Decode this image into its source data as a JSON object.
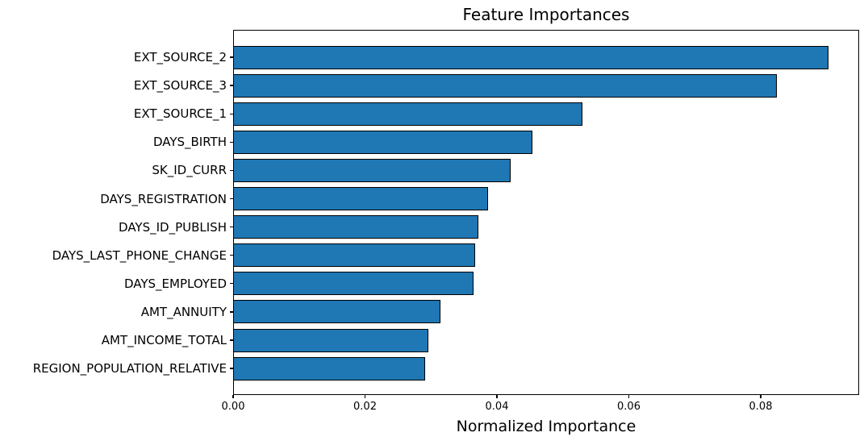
{
  "chart_data": {
    "type": "bar",
    "orientation": "horizontal",
    "title": "Feature Importances",
    "xlabel": "Normalized Importance",
    "ylabel": "",
    "categories": [
      "EXT_SOURCE_2",
      "EXT_SOURCE_3",
      "EXT_SOURCE_1",
      "DAYS_BIRTH",
      "SK_ID_CURR",
      "DAYS_REGISTRATION",
      "DAYS_ID_PUBLISH",
      "DAYS_LAST_PHONE_CHANGE",
      "DAYS_EMPLOYED",
      "AMT_ANNUITY",
      "AMT_INCOME_TOTAL",
      "REGION_POPULATION_RELATIVE"
    ],
    "values": [
      0.0903,
      0.0824,
      0.053,
      0.0454,
      0.0421,
      0.0387,
      0.0372,
      0.0367,
      0.0365,
      0.0314,
      0.0296,
      0.0291
    ],
    "xlim": [
      0,
      0.0949
    ],
    "x_ticks": {
      "values": [
        0,
        0.02,
        0.04,
        0.06,
        0.08
      ],
      "labels": [
        "0.00",
        "0.02",
        "0.04",
        "0.06",
        "0.08"
      ]
    },
    "grid": false,
    "legend": null,
    "colors": {
      "bar_fill": "#1f77b4",
      "bar_edge": "#000000",
      "axis": "#000000",
      "text": "#000000",
      "background": "#ffffff"
    }
  }
}
